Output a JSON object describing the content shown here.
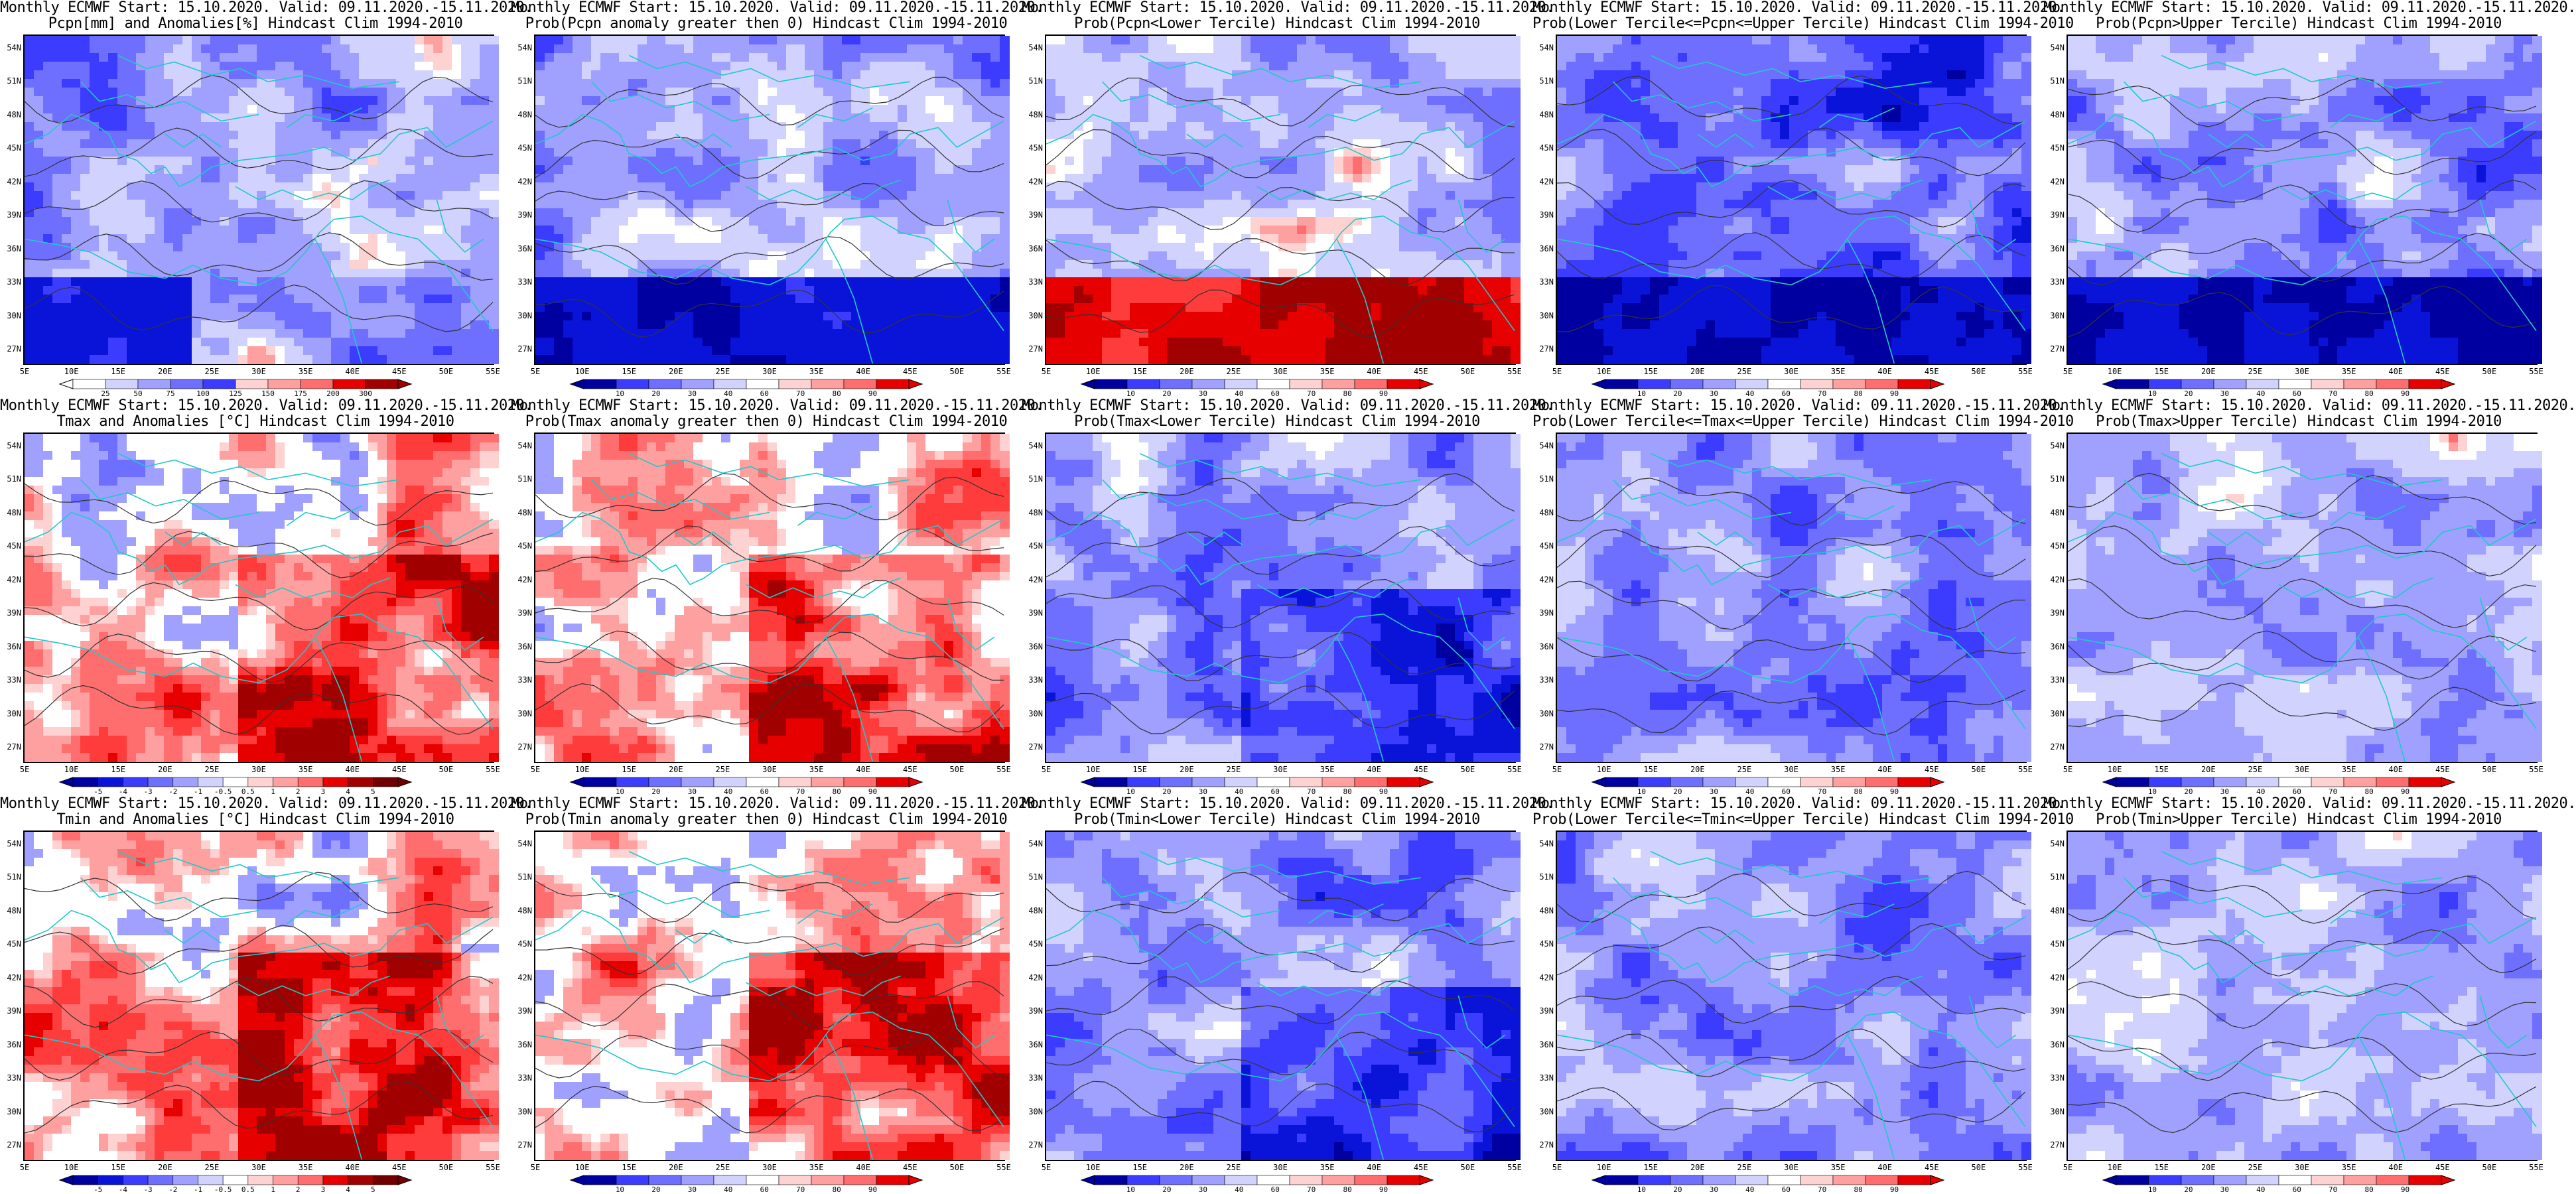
{
  "lat_labels": [
    "54N",
    "51N",
    "48N",
    "45N",
    "42N",
    "39N",
    "36N",
    "33N",
    "30N",
    "27N"
  ],
  "lon_labels": [
    "5E",
    "10E",
    "15E",
    "20E",
    "25E",
    "30E",
    "35E",
    "40E",
    "45E",
    "50E",
    "55E"
  ],
  "colors": {
    "coast": "#22c8c8",
    "contour": "#333333",
    "blue_scale": [
      "#0000a0",
      "#0a14d8",
      "#3c3cff",
      "#6e6eff",
      "#a0a0ff",
      "#d2d2ff",
      "#ffffff"
    ],
    "red_scale": [
      "#ffffff",
      "#ffd2d2",
      "#ffa0a0",
      "#ff6e6e",
      "#ff3c3c",
      "#e60000",
      "#a00000"
    ]
  },
  "panels": [
    {
      "title1": "Monthly ECMWF Start: 15.10.2020. Valid: 09.11.2020.-15.11.2020.",
      "title2": "Pcpn[mm] and Anomalies[%] Hindcast Clim 1994-2010",
      "style": "pcpn-anom",
      "ticks": [
        "25",
        "50",
        "75",
        "100",
        "125",
        "150",
        "175",
        "200",
        "300"
      ]
    },
    {
      "title1": "Monthly ECMWF Start: 15.10.2020. Valid: 09.11.2020.-15.11.2020.",
      "title2": "Prob(Pcpn anomaly greater then 0) Hindcast Clim 1994-2010",
      "style": "pcpn-prob",
      "ticks": [
        "10",
        "20",
        "30",
        "40",
        "60",
        "70",
        "80",
        "90"
      ]
    },
    {
      "title1": "Monthly ECMWF Start: 15.10.2020. Valid: 09.11.2020.-15.11.2020.",
      "title2": "Prob(Pcpn<Lower Tercile) Hindcast Clim 1994-2010",
      "style": "pcpn-lower",
      "ticks": [
        "10",
        "20",
        "30",
        "40",
        "60",
        "70",
        "80",
        "90"
      ]
    },
    {
      "title1": "Monthly ECMWF Start: 15.10.2020. Valid: 09.11.2020.-15.11.2020.",
      "title2": "Prob(Lower Tercile<=Pcpn<=Upper Tercile) Hindcast Clim 1994-2010",
      "style": "pcpn-mid",
      "ticks": [
        "10",
        "20",
        "30",
        "40",
        "60",
        "70",
        "80",
        "90"
      ]
    },
    {
      "title1": "Monthly ECMWF Start: 15.10.2020. Valid: 09.11.2020.-15.11.2020.",
      "title2": "Prob(Pcpn>Upper Tercile) Hindcast Clim 1994-2010",
      "style": "pcpn-upper",
      "ticks": [
        "10",
        "20",
        "30",
        "40",
        "60",
        "70",
        "80",
        "90"
      ]
    },
    {
      "title1": "Monthly ECMWF Start: 15.10.2020. Valid: 09.11.2020.-15.11.2020.",
      "title2": "Tmax and Anomalies [°C] Hindcast Clim 1994-2010",
      "style": "tmax-anom",
      "ticks": [
        "-5",
        "-4",
        "-3",
        "-2",
        "-1",
        "-0.5",
        "0.5",
        "1",
        "2",
        "3",
        "4",
        "5"
      ]
    },
    {
      "title1": "Monthly ECMWF Start: 15.10.2020. Valid: 09.11.2020.-15.11.2020.",
      "title2": "Prob(Tmax anomaly greater then 0) Hindcast Clim 1994-2010",
      "style": "tmax-prob",
      "ticks": [
        "10",
        "20",
        "30",
        "40",
        "60",
        "70",
        "80",
        "90"
      ]
    },
    {
      "title1": "Monthly ECMWF Start: 15.10.2020. Valid: 09.11.2020.-15.11.2020.",
      "title2": "Prob(Tmax<Lower Tercile) Hindcast Clim 1994-2010",
      "style": "tmax-lower",
      "ticks": [
        "10",
        "20",
        "30",
        "40",
        "60",
        "70",
        "80",
        "90"
      ]
    },
    {
      "title1": "Monthly ECMWF Start: 15.10.2020. Valid: 09.11.2020.-15.11.2020.",
      "title2": "Prob(Lower Tercile<=Tmax<=Upper Tercile) Hindcast Clim 1994-2010",
      "style": "tmax-mid",
      "ticks": [
        "10",
        "20",
        "30",
        "40",
        "60",
        "70",
        "80",
        "90"
      ]
    },
    {
      "title1": "Monthly ECMWF Start: 15.10.2020. Valid: 09.11.2020.-15.11.2020.",
      "title2": "Prob(Tmax>Upper Tercile) Hindcast Clim 1994-2010",
      "style": "tmax-upper",
      "ticks": [
        "10",
        "20",
        "30",
        "40",
        "60",
        "70",
        "80",
        "90"
      ]
    },
    {
      "title1": "Monthly ECMWF Start: 15.10.2020. Valid: 09.11.2020.-15.11.2020.",
      "title2": "Tmin and Anomalies [°C] Hindcast Clim 1994-2010",
      "style": "tmin-anom",
      "ticks": [
        "-5",
        "-4",
        "-3",
        "-2",
        "-1",
        "-0.5",
        "0.5",
        "1",
        "2",
        "3",
        "4",
        "5"
      ]
    },
    {
      "title1": "Monthly ECMWF Start: 15.10.2020. Valid: 09.11.2020.-15.11.2020.",
      "title2": "Prob(Tmin anomaly greater then 0) Hindcast Clim 1994-2010",
      "style": "tmin-prob",
      "ticks": [
        "10",
        "20",
        "30",
        "40",
        "60",
        "70",
        "80",
        "90"
      ]
    },
    {
      "title1": "Monthly ECMWF Start: 15.10.2020. Valid: 09.11.2020.-15.11.2020.",
      "title2": "Prob(Tmin<Lower Tercile) Hindcast Clim 1994-2010",
      "style": "tmin-lower",
      "ticks": [
        "10",
        "20",
        "30",
        "40",
        "60",
        "70",
        "80",
        "90"
      ]
    },
    {
      "title1": "Monthly ECMWF Start: 15.10.2020. Valid: 09.11.2020.-15.11.2020.",
      "title2": "Prob(Lower Tercile<=Tmin<=Upper Tercile) Hindcast Clim 1994-2010",
      "style": "tmin-mid",
      "ticks": [
        "10",
        "20",
        "30",
        "40",
        "60",
        "70",
        "80",
        "90"
      ]
    },
    {
      "title1": "Monthly ECMWF Start: 15.10.2020. Valid: 09.11.2020.-15.11.2020.",
      "title2": "Prob(Tmin>Upper Tercile) Hindcast Clim 1994-2010",
      "style": "tmin-upper",
      "ticks": [
        "10",
        "20",
        "30",
        "40",
        "60",
        "70",
        "80",
        "90"
      ]
    }
  ]
}
